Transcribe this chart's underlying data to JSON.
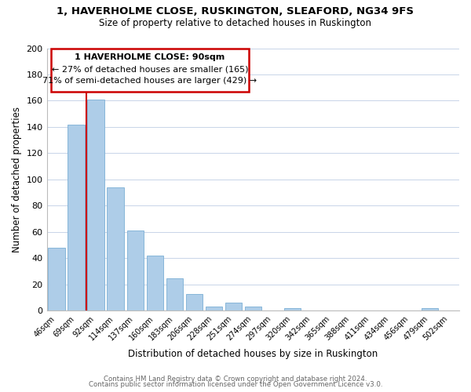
{
  "title": "1, HAVERHOLME CLOSE, RUSKINGTON, SLEAFORD, NG34 9FS",
  "subtitle": "Size of property relative to detached houses in Ruskington",
  "xlabel": "Distribution of detached houses by size in Ruskington",
  "ylabel": "Number of detached properties",
  "bar_color": "#aecde8",
  "bar_edge_color": "#7bafd4",
  "highlight_color": "#cc0000",
  "categories": [
    "46sqm",
    "69sqm",
    "92sqm",
    "114sqm",
    "137sqm",
    "160sqm",
    "183sqm",
    "206sqm",
    "228sqm",
    "251sqm",
    "274sqm",
    "297sqm",
    "320sqm",
    "342sqm",
    "365sqm",
    "388sqm",
    "411sqm",
    "434sqm",
    "456sqm",
    "479sqm",
    "502sqm"
  ],
  "values": [
    48,
    142,
    161,
    94,
    61,
    42,
    25,
    13,
    3,
    6,
    3,
    0,
    2,
    0,
    0,
    0,
    0,
    0,
    0,
    2,
    0
  ],
  "ylim": [
    0,
    200
  ],
  "yticks": [
    0,
    20,
    40,
    60,
    80,
    100,
    120,
    140,
    160,
    180,
    200
  ],
  "annotation_title": "1 HAVERHOLME CLOSE: 90sqm",
  "annotation_line1": "← 27% of detached houses are smaller (165)",
  "annotation_line2": "71% of semi-detached houses are larger (429) →",
  "vline_x": 1.5,
  "footer_line1": "Contains HM Land Registry data © Crown copyright and database right 2024.",
  "footer_line2": "Contains public sector information licensed under the Open Government Licence v3.0.",
  "background_color": "#ffffff",
  "grid_color": "#c8d4e8"
}
